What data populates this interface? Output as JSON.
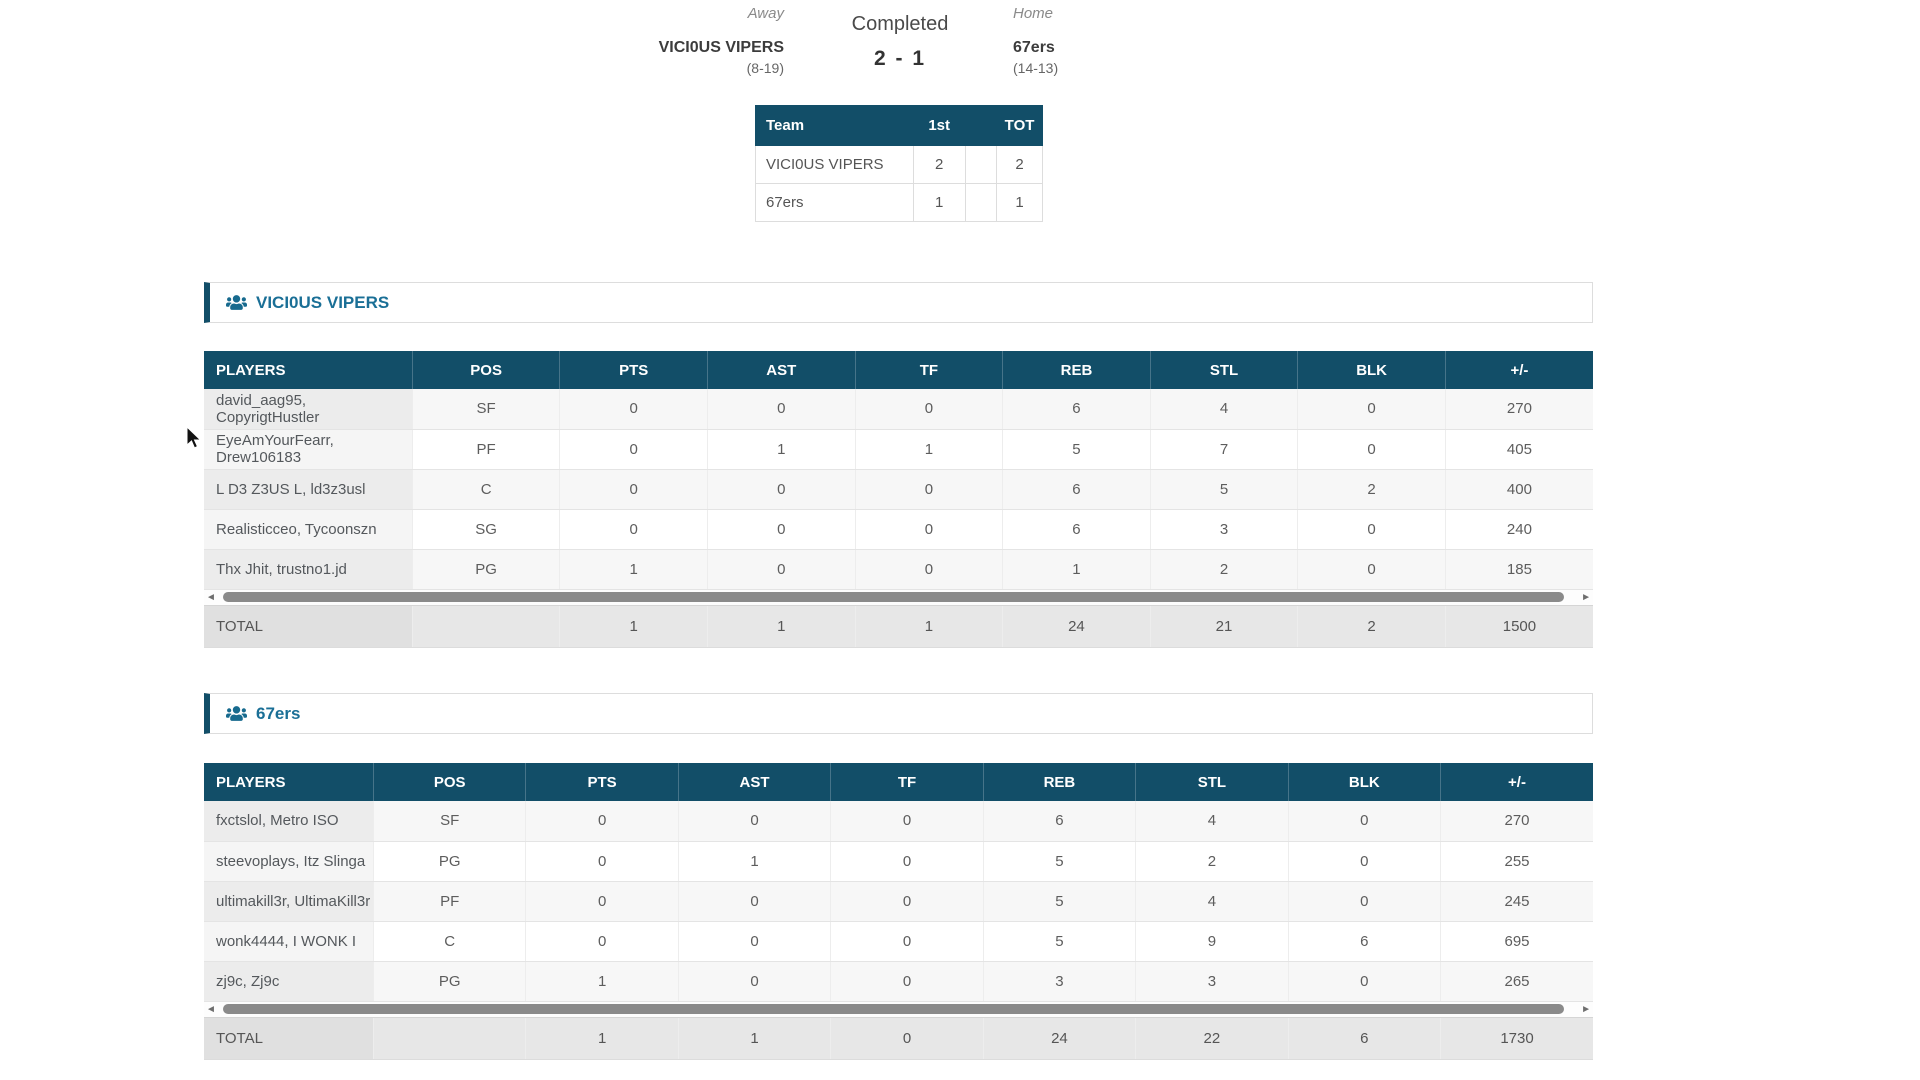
{
  "match": {
    "status": "Completed",
    "score": "2  -  1",
    "away": {
      "label": "Away",
      "name": "VICI0US VIPERS",
      "record": "(8-19)"
    },
    "home": {
      "label": "Home",
      "name": "67ers",
      "record": "(14-13)"
    }
  },
  "score_table": {
    "headers": {
      "team": "Team",
      "p1": "1st",
      "mid": "",
      "tot": "TOT"
    },
    "rows": [
      {
        "team": "VICI0US VIPERS",
        "p1": "2",
        "mid": "",
        "tot": "2"
      },
      {
        "team": "67ers",
        "p1": "1",
        "mid": "",
        "tot": "1"
      }
    ]
  },
  "sections": [
    {
      "title": "VICI0US VIPERS",
      "columns": [
        "PLAYERS",
        "POS",
        "PTS",
        "AST",
        "TF",
        "REB",
        "STL",
        "BLK",
        "+/-"
      ],
      "rows": [
        [
          "david_aag95, CopyrigtHustler",
          "SF",
          "0",
          "0",
          "0",
          "6",
          "4",
          "0",
          "270"
        ],
        [
          "EyeAmYourFearr, Drew106183",
          "PF",
          "0",
          "1",
          "1",
          "5",
          "7",
          "0",
          "405"
        ],
        [
          "L D3 Z3US L, ld3z3usl",
          "C",
          "0",
          "0",
          "0",
          "6",
          "5",
          "2",
          "400"
        ],
        [
          "Realisticceo, Tycoonszn",
          "SG",
          "0",
          "0",
          "0",
          "6",
          "3",
          "0",
          "240"
        ],
        [
          "Thx Jhit, trustno1.jd",
          "PG",
          "1",
          "0",
          "0",
          "1",
          "2",
          "0",
          "185"
        ]
      ],
      "total": [
        "TOTAL",
        "",
        "1",
        "1",
        "1",
        "24",
        "21",
        "2",
        "1500"
      ]
    },
    {
      "title": "67ers",
      "columns": [
        "PLAYERS",
        "POS",
        "PTS",
        "AST",
        "TF",
        "REB",
        "STL",
        "BLK",
        "+/-"
      ],
      "rows": [
        [
          "fxctslol, Metro ISO",
          "SF",
          "0",
          "0",
          "0",
          "6",
          "4",
          "0",
          "270"
        ],
        [
          "steevoplays, Itz Slinga",
          "PG",
          "0",
          "1",
          "0",
          "5",
          "2",
          "0",
          "255"
        ],
        [
          "ultimakill3r, UltimaKill3r",
          "PF",
          "0",
          "0",
          "0",
          "5",
          "4",
          "0",
          "245"
        ],
        [
          "wonk4444, I WONK I",
          "C",
          "0",
          "0",
          "0",
          "5",
          "9",
          "6",
          "695"
        ],
        [
          "zj9c, Zj9c",
          "PG",
          "1",
          "0",
          "0",
          "3",
          "3",
          "0",
          "265"
        ]
      ],
      "total": [
        "TOTAL",
        "",
        "1",
        "1",
        "0",
        "24",
        "22",
        "6",
        "1730"
      ]
    }
  ],
  "scrollbar": {
    "left_arrow": "◄",
    "right_arrow": "►"
  },
  "colors": {
    "header_teal": "#124e68",
    "title_text": "#1a6f96",
    "total_bg": "#e7e7e7"
  }
}
